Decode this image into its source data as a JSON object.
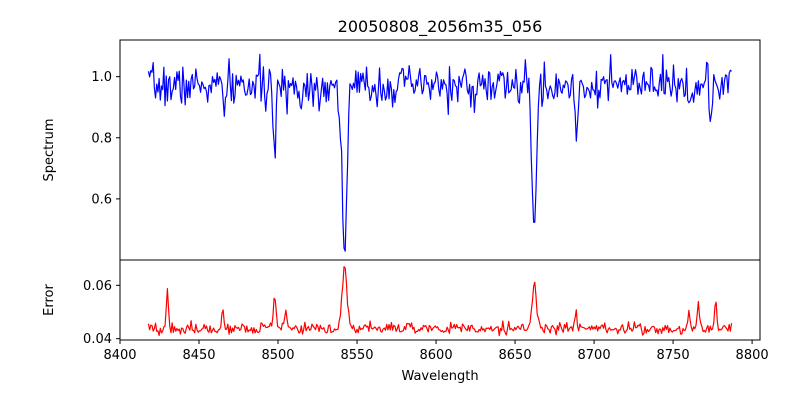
{
  "chart_data": [
    {
      "panel": "top",
      "type": "line",
      "title": "20050808_2056m35_056",
      "ylabel": "Spectrum",
      "xlabel": "",
      "xlim": [
        8400,
        8805
      ],
      "ylim": [
        0.4,
        1.12
      ],
      "yticks": [
        0.6,
        0.8,
        1.0
      ],
      "ytick_labels": [
        "0.6",
        "0.8",
        "1.0"
      ],
      "grid": false,
      "series": [
        {
          "color": "#0000ff",
          "profile": {
            "x_start": 8418,
            "x_end": 8787,
            "step": 0.75,
            "baseline": 0.97,
            "noise": 0.033,
            "lines": [
              {
                "center": 8498.0,
                "depth": 0.24,
                "width": 0.9
              },
              {
                "center": 8542.1,
                "depth": 0.52,
                "width": 1.6
              },
              {
                "center": 8662.2,
                "depth": 0.48,
                "width": 1.4
              },
              {
                "center": 8688.6,
                "depth": 0.2,
                "width": 0.6
              },
              {
                "center": 8466.0,
                "depth": 0.1,
                "width": 0.6
              },
              {
                "center": 8514.5,
                "depth": 0.07,
                "width": 0.6
              },
              {
                "center": 8621.0,
                "depth": 0.05,
                "width": 0.6
              },
              {
                "center": 8674.7,
                "depth": 0.07,
                "width": 0.6
              },
              {
                "center": 8764.5,
                "depth": 0.07,
                "width": 0.6
              },
              {
                "center": 8774.0,
                "depth": 0.1,
                "width": 0.8
              }
            ]
          }
        }
      ]
    },
    {
      "panel": "bottom",
      "type": "line",
      "title": "",
      "ylabel": "Error",
      "xlabel": "Wavelength",
      "xlim": [
        8400,
        8805
      ],
      "ylim": [
        0.0395,
        0.0695
      ],
      "xticks": [
        8400,
        8450,
        8500,
        8550,
        8600,
        8650,
        8700,
        8750,
        8800
      ],
      "xtick_labels": [
        "8400",
        "8450",
        "8500",
        "8550",
        "8600",
        "8650",
        "8700",
        "8750",
        "8800"
      ],
      "yticks": [
        0.04,
        0.06
      ],
      "ytick_labels": [
        "0.04",
        "0.06"
      ],
      "grid": false,
      "series": [
        {
          "color": "#ff0000",
          "profile": {
            "x_start": 8418,
            "x_end": 8787,
            "step": 0.75,
            "baseline": 0.0438,
            "noise": 0.0012,
            "peaks": [
              {
                "center": 8430.0,
                "height": 0.0142,
                "width": 0.6
              },
              {
                "center": 8465.0,
                "height": 0.0082,
                "width": 0.6
              },
              {
                "center": 8498.0,
                "height": 0.0108,
                "width": 0.9
              },
              {
                "center": 8542.1,
                "height": 0.0232,
                "width": 1.5
              },
              {
                "center": 8662.2,
                "height": 0.0172,
                "width": 1.4
              },
              {
                "center": 8688.6,
                "height": 0.0062,
                "width": 0.6
              },
              {
                "center": 8505.0,
                "height": 0.006,
                "width": 0.6
              },
              {
                "center": 8760.0,
                "height": 0.0072,
                "width": 0.6
              },
              {
                "center": 8766.0,
                "height": 0.0092,
                "width": 0.6
              },
              {
                "center": 8777.0,
                "height": 0.011,
                "width": 0.8
              }
            ]
          }
        }
      ]
    }
  ]
}
